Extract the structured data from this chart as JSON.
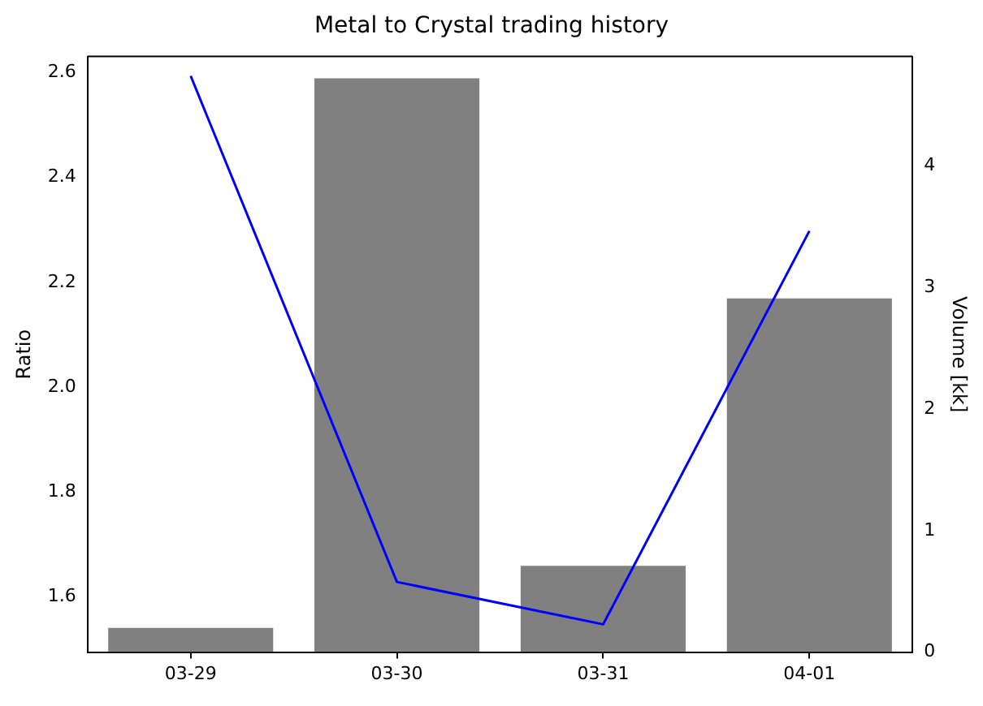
{
  "chart_data": {
    "type": "bar",
    "title": "Metal to Crystal trading history",
    "ylabel": "Ratio",
    "y2label": "Volume [kk]",
    "categories": [
      "03-29",
      "03-30",
      "03-31",
      "04-01"
    ],
    "series": [
      {
        "axis": "y2",
        "color": "#808080",
        "values": [
          0.2,
          4.72,
          0.71,
          2.91
        ]
      },
      {
        "type": "line",
        "axis": "y",
        "color": "#0000ff",
        "values": [
          2.594,
          1.628,
          1.547,
          2.298
        ]
      }
    ],
    "ylim": [
      1.494,
      2.631
    ],
    "yticks": [
      1.6,
      1.8,
      {
        "value": 2,
        "label": "2.0"
      },
      2.2,
      2.4,
      2.6
    ],
    "y2lim": [
      0,
      4.9
    ],
    "y2ticks": [
      0,
      1,
      2,
      3,
      4
    ],
    "grid": false,
    "legend": false,
    "marker": "none"
  }
}
